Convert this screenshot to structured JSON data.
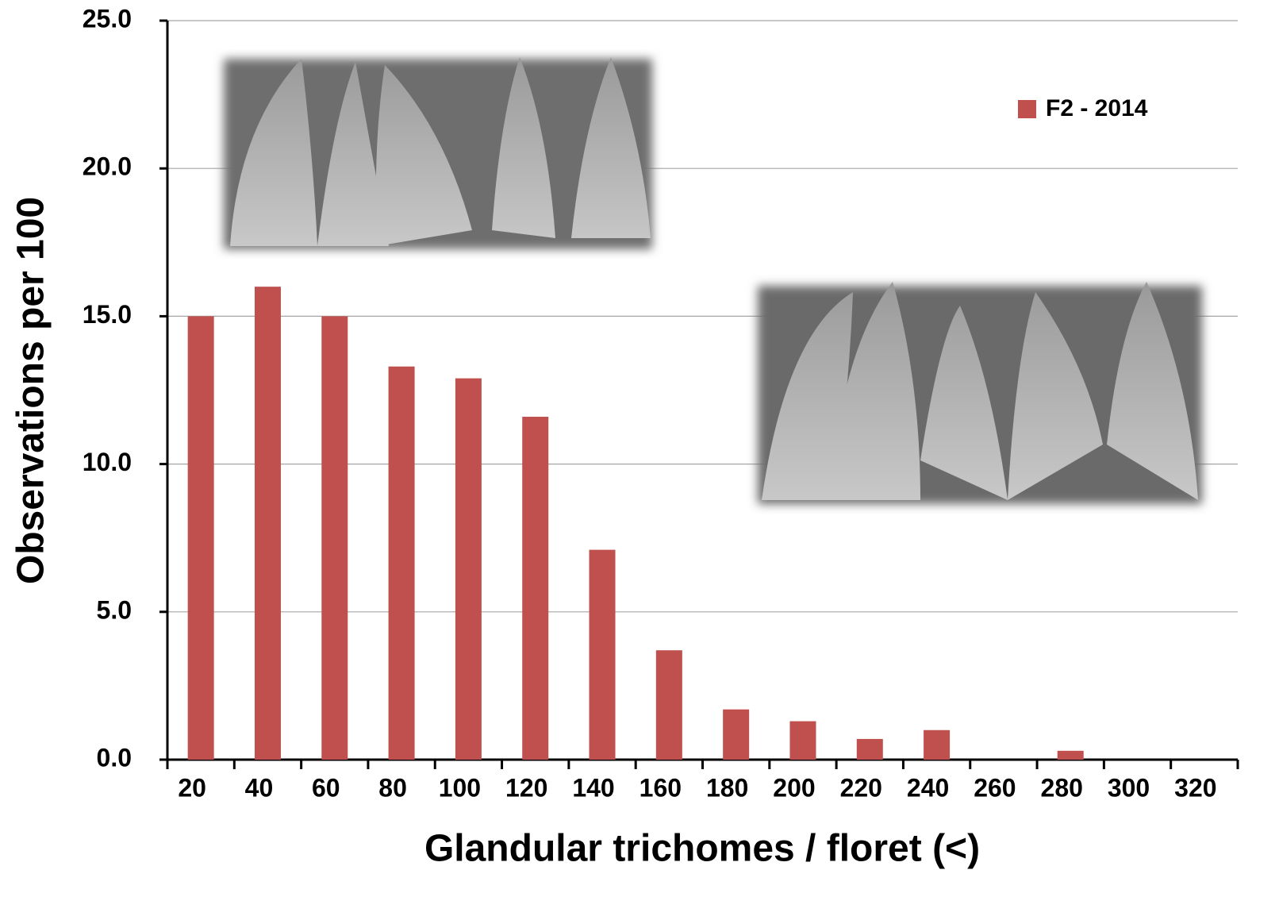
{
  "chart_data": {
    "type": "bar",
    "x_label": "Glandular trichomes / floret (<)",
    "y_label": "Observations per 100",
    "categories": [
      "20",
      "40",
      "60",
      "80",
      "100",
      "120",
      "140",
      "160",
      "180",
      "200",
      "220",
      "240",
      "260",
      "280",
      "300",
      "320"
    ],
    "series": [
      {
        "name": "F2 - 2014",
        "color": "#c0504d",
        "values": [
          15.0,
          16.0,
          15.0,
          13.3,
          12.9,
          11.6,
          7.1,
          3.7,
          1.7,
          1.3,
          0.7,
          1.0,
          0,
          0.3,
          0,
          0
        ]
      }
    ],
    "ylim": [
      0,
      25
    ],
    "yticks": [
      {
        "value": 0,
        "label": "0.0"
      },
      {
        "value": 5,
        "label": "5.0"
      },
      {
        "value": 10,
        "label": "10.0"
      },
      {
        "value": 15,
        "label": "15.0"
      },
      {
        "value": 20,
        "label": "20.0"
      },
      {
        "value": 25,
        "label": "25.0"
      }
    ],
    "grid": true,
    "legend": "upper right"
  }
}
